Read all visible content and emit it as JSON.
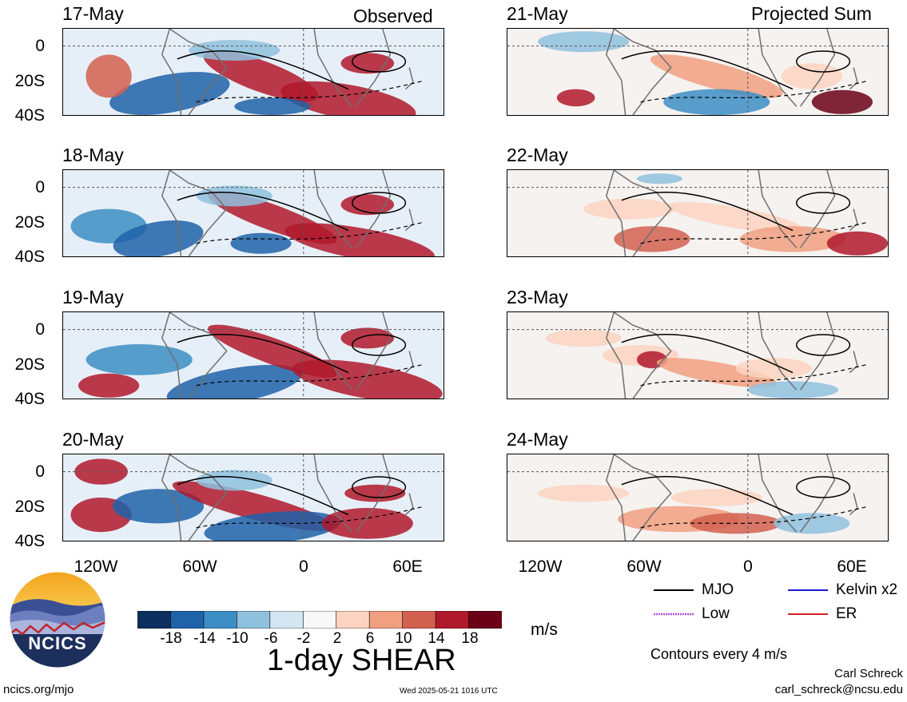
{
  "header": {
    "left_label": "Observed",
    "right_label": "Projected Sum"
  },
  "panels": {
    "left_dates": [
      "17-May",
      "18-May",
      "19-May",
      "20-May"
    ],
    "right_dates": [
      "21-May",
      "22-May",
      "23-May",
      "24-May"
    ]
  },
  "axes": {
    "y_ticks": [
      "0",
      "20S",
      "40S"
    ],
    "x_ticks": [
      "120W",
      "60W",
      "0",
      "60E"
    ]
  },
  "colorbar": {
    "ticks": [
      "-18",
      "-14",
      "-10",
      "-6",
      "-2",
      "2",
      "6",
      "10",
      "14",
      "18"
    ],
    "units": "m/s",
    "colors": [
      "#0b2f5e",
      "#1f62a8",
      "#3c8ec4",
      "#8fc1de",
      "#d3e6f2",
      "#f8f8f8",
      "#fbd3c0",
      "#f0a080",
      "#d2604f",
      "#b0192c",
      "#6b0016"
    ]
  },
  "title": "1-day SHEAR",
  "legend": {
    "items": [
      {
        "label": "MJO",
        "color": "#000000",
        "style": "solid"
      },
      {
        "label": "Kelvin x2",
        "color": "#1a1ad0",
        "style": "solid"
      },
      {
        "label": "Low",
        "color": "#b04fd8",
        "style": "dotted"
      },
      {
        "label": "ER",
        "color": "#d02020",
        "style": "solid"
      }
    ],
    "contours_note": "Contours every 4 m/s"
  },
  "logo": {
    "text": "NCICS"
  },
  "footer": {
    "url": "ncics.org/mjo",
    "timestamp": "Wed 2025-05-21 1016 UTC",
    "author": "Carl Schreck",
    "email": "carl_schreck@ncsu.edu"
  }
}
